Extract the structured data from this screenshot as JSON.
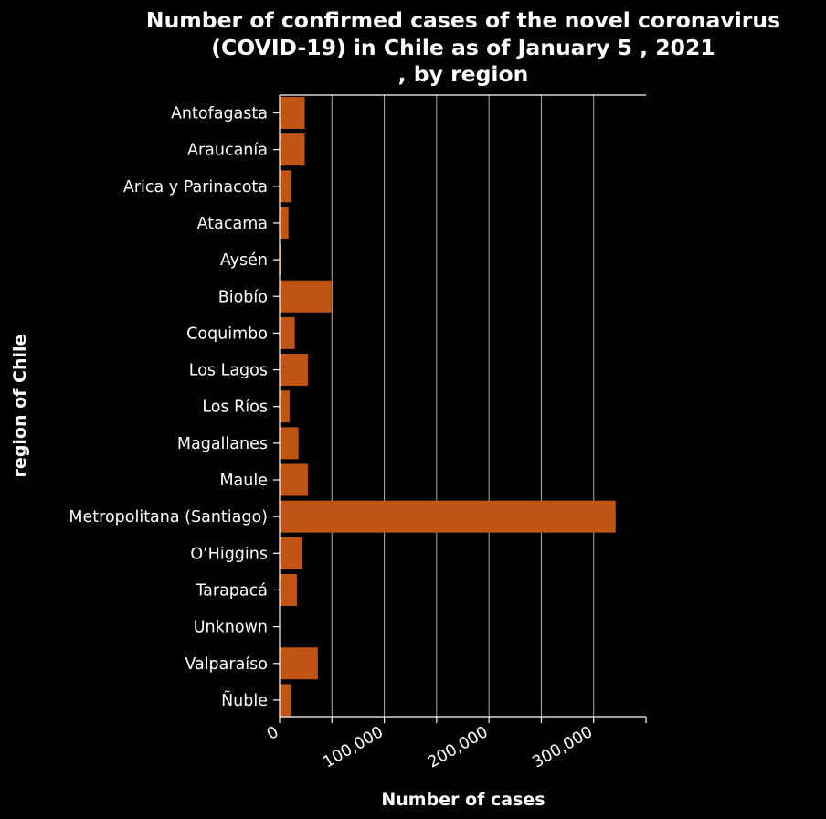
{
  "chart_data": {
    "type": "bar",
    "orientation": "horizontal",
    "title": [
      "Number of confirmed cases of the novel coronavirus",
      "(COVID-19) in Chile as of January 5 , 2021",
      ", by region"
    ],
    "xlabel": "Number of cases",
    "ylabel": "region of Chile",
    "xlim": [
      0,
      350000
    ],
    "xticks": [
      0,
      100000,
      200000,
      300000
    ],
    "xtick_labels": [
      "0",
      "100,000",
      "200,000",
      "300,000"
    ],
    "grid": "vertical",
    "categories": [
      "Antofagasta",
      "Araucanía",
      "Arica y Parinacota",
      "Atacama",
      "Aysén",
      "Biobío",
      "Coquimbo",
      "Los Lagos",
      "Los Ríos",
      "Magallanes",
      "Maule",
      "Metropolitana  (Santiago)",
      "O’Higgins",
      "Tarapacá",
      "Unknown",
      "Valparaíso",
      "Ñuble"
    ],
    "values": [
      24000,
      24000,
      11000,
      8500,
      1500,
      49500,
      14500,
      27000,
      9500,
      18000,
      27000,
      321000,
      21500,
      16500,
      0,
      36500,
      11000
    ],
    "colors": {
      "bar": "#c05414",
      "background": "#000000",
      "grid": "#b0b0b0",
      "text": "#ffffff"
    }
  }
}
